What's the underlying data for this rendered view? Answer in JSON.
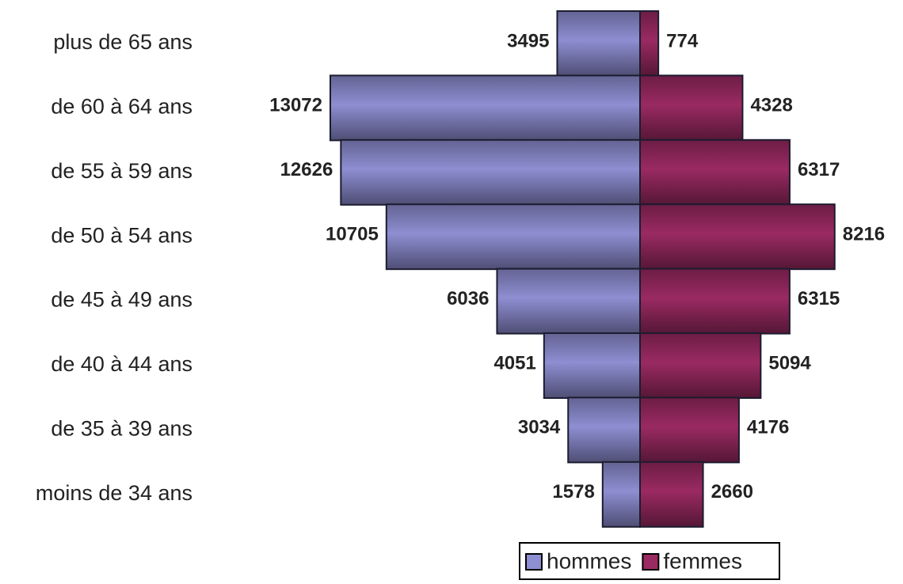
{
  "chart_data": {
    "type": "pyramid",
    "categories": [
      "plus de 65 ans",
      "de 60 à 64 ans",
      "de 55 à 59 ans",
      "de 50 à 54 ans",
      "de 45 à 49 ans",
      "de 40 à 44 ans",
      "de 35 à 39 ans",
      "moins de 34 ans"
    ],
    "series": [
      {
        "name": "hommes",
        "color": "#8e8ed2",
        "values": [
          3495,
          13072,
          12626,
          10705,
          6036,
          4051,
          3034,
          1578
        ]
      },
      {
        "name": "femmes",
        "color": "#9a2a62",
        "values": [
          774,
          4328,
          6317,
          8216,
          6315,
          5094,
          4176,
          2660
        ]
      }
    ],
    "legend": "bottom"
  }
}
